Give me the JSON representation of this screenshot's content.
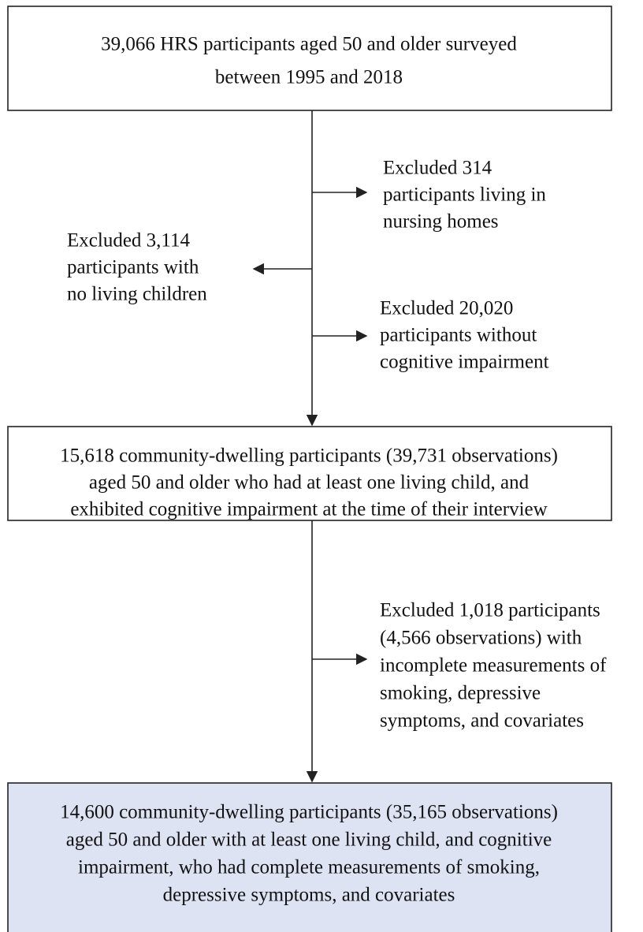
{
  "nodes": [
    {
      "lines": [
        "39,066 HRS participants aged 50 and older surveyed",
        "between 1995 and 2018"
      ]
    },
    {
      "lines": [
        "15,618 community-dwelling participants (39,731 observations)",
        "aged 50 and older who had at least one living child, and",
        "exhibited cognitive impairment at the time of their interview"
      ]
    },
    {
      "lines": [
        "14,600 community-dwelling participants (35,165 observations)",
        "aged 50 and older with at least one living child, and cognitive",
        "impairment, who had complete measurements of smoking,",
        "depressive symptoms, and covariates"
      ]
    }
  ],
  "exclusions": [
    {
      "lines": [
        "Excluded 314",
        "participants living in",
        "nursing homes"
      ]
    },
    {
      "lines": [
        "Excluded 3,114",
        "participants with",
        "no living children"
      ]
    },
    {
      "lines": [
        "Excluded 20,020",
        "participants without",
        "cognitive impairment"
      ]
    },
    {
      "lines": [
        "Excluded 1,018 participants",
        "(4,566 observations) with",
        "incomplete measurements of",
        "smoking, depressive",
        "symptoms, and covariates"
      ]
    }
  ]
}
